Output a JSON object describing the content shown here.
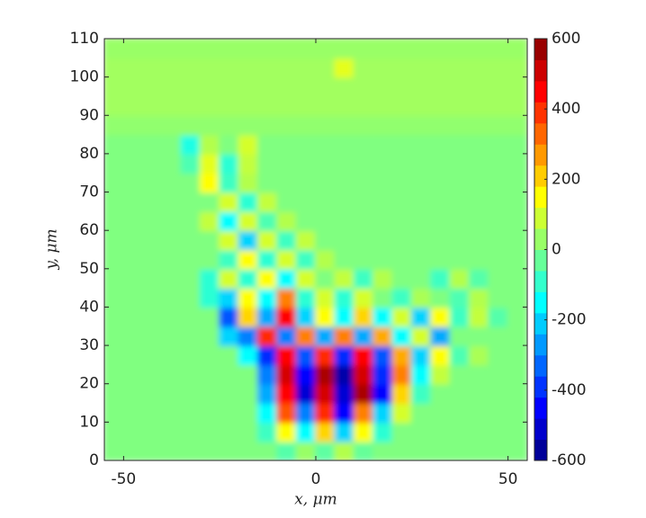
{
  "chart_data": {
    "type": "heatmap",
    "xlabel": "x, μm",
    "ylabel": "y, μm",
    "xlim": [
      -55,
      55
    ],
    "ylim": [
      0,
      110
    ],
    "xticks": [
      -50,
      0,
      50
    ],
    "yticks": [
      0,
      10,
      20,
      30,
      40,
      50,
      60,
      70,
      80,
      90,
      100,
      110
    ],
    "zlim": [
      -600,
      600
    ],
    "zticks": [
      -600,
      -400,
      -200,
      0,
      200,
      400,
      600
    ],
    "colormap": "jet",
    "x": [
      -52.5,
      -47.5,
      -42.5,
      -37.5,
      -32.5,
      -27.5,
      -22.5,
      -17.5,
      -12.5,
      -7.5,
      -2.5,
      2.5,
      7.5,
      12.5,
      17.5,
      22.5,
      27.5,
      32.5,
      37.5,
      42.5,
      47.5,
      52.5
    ],
    "y": [
      2.5,
      7.5,
      12.5,
      17.5,
      22.5,
      27.5,
      32.5,
      37.5,
      42.5,
      47.5,
      52.5,
      57.5,
      62.5,
      67.5,
      72.5,
      77.5,
      82.5,
      87.5,
      92.5,
      97.5,
      102.5,
      107.5
    ],
    "z": [
      [
        0,
        0,
        0,
        0,
        0,
        0,
        0,
        0,
        0,
        -50,
        30,
        -40,
        60,
        -30,
        0,
        0,
        0,
        0,
        0,
        0,
        0,
        0
      ],
      [
        0,
        0,
        0,
        0,
        0,
        0,
        0,
        0,
        -80,
        150,
        -150,
        200,
        -200,
        150,
        -100,
        0,
        0,
        0,
        0,
        0,
        0,
        0
      ],
      [
        0,
        0,
        0,
        0,
        0,
        0,
        0,
        0,
        -150,
        350,
        -300,
        400,
        -450,
        300,
        -200,
        100,
        0,
        0,
        0,
        0,
        0,
        0
      ],
      [
        0,
        0,
        0,
        0,
        0,
        0,
        0,
        0,
        -250,
        450,
        -500,
        500,
        -500,
        550,
        -450,
        200,
        -80,
        0,
        0,
        0,
        0,
        0
      ],
      [
        0,
        0,
        0,
        0,
        0,
        0,
        0,
        0,
        -300,
        500,
        -450,
        550,
        -550,
        500,
        -400,
        300,
        -150,
        80,
        0,
        0,
        0,
        0
      ],
      [
        0,
        0,
        0,
        0,
        0,
        0,
        0,
        -150,
        -400,
        450,
        -350,
        400,
        -400,
        450,
        -350,
        250,
        -200,
        150,
        -60,
        50,
        0,
        0
      ],
      [
        0,
        0,
        0,
        0,
        0,
        0,
        -200,
        -300,
        400,
        -300,
        300,
        -250,
        300,
        -250,
        250,
        -150,
        100,
        -250,
        0,
        0,
        0,
        0
      ],
      [
        0,
        0,
        0,
        0,
        0,
        0,
        -350,
        200,
        -250,
        450,
        -200,
        150,
        -150,
        200,
        -150,
        100,
        -200,
        150,
        -80,
        80,
        -50,
        0
      ],
      [
        0,
        0,
        0,
        0,
        0,
        -100,
        -200,
        150,
        -150,
        300,
        -100,
        100,
        -100,
        100,
        0,
        -80,
        50,
        0,
        -60,
        60,
        0,
        0
      ],
      [
        0,
        0,
        0,
        0,
        0,
        -100,
        100,
        -100,
        150,
        -150,
        100,
        0,
        80,
        -80,
        60,
        0,
        0,
        -80,
        60,
        -50,
        0,
        0
      ],
      [
        0,
        0,
        0,
        0,
        0,
        0,
        -80,
        150,
        -100,
        100,
        -80,
        60,
        0,
        0,
        0,
        0,
        0,
        0,
        0,
        0,
        0,
        0
      ],
      [
        0,
        0,
        0,
        0,
        0,
        0,
        100,
        -200,
        100,
        -80,
        80,
        0,
        0,
        0,
        0,
        0,
        0,
        0,
        0,
        0,
        0,
        0
      ],
      [
        0,
        0,
        0,
        0,
        0,
        80,
        -150,
        100,
        -60,
        60,
        0,
        0,
        0,
        0,
        0,
        0,
        0,
        0,
        0,
        0,
        0,
        0
      ],
      [
        0,
        0,
        0,
        0,
        0,
        0,
        100,
        -100,
        80,
        0,
        0,
        0,
        0,
        0,
        0,
        0,
        0,
        0,
        0,
        0,
        0,
        0
      ],
      [
        0,
        0,
        0,
        0,
        0,
        150,
        -80,
        60,
        0,
        0,
        0,
        0,
        0,
        0,
        0,
        0,
        0,
        0,
        0,
        0,
        0,
        0
      ],
      [
        0,
        0,
        0,
        0,
        -60,
        120,
        -100,
        80,
        0,
        0,
        0,
        0,
        0,
        0,
        0,
        0,
        0,
        0,
        0,
        0,
        0,
        0
      ],
      [
        0,
        0,
        0,
        0,
        -120,
        60,
        0,
        100,
        0,
        0,
        0,
        0,
        0,
        0,
        0,
        0,
        0,
        0,
        0,
        0,
        0,
        0
      ],
      [
        20,
        20,
        20,
        20,
        20,
        20,
        20,
        20,
        20,
        20,
        20,
        20,
        20,
        20,
        20,
        20,
        20,
        20,
        20,
        20,
        20,
        20
      ],
      [
        40,
        40,
        40,
        40,
        40,
        40,
        40,
        40,
        40,
        40,
        40,
        40,
        40,
        40,
        40,
        40,
        40,
        40,
        40,
        40,
        40,
        40
      ],
      [
        40,
        40,
        40,
        40,
        40,
        40,
        40,
        40,
        40,
        40,
        40,
        40,
        40,
        40,
        40,
        40,
        40,
        40,
        40,
        40,
        40,
        40
      ],
      [
        40,
        40,
        40,
        40,
        40,
        40,
        40,
        40,
        40,
        40,
        40,
        40,
        120,
        40,
        40,
        40,
        40,
        40,
        40,
        40,
        40,
        40
      ],
      [
        30,
        30,
        30,
        30,
        30,
        30,
        30,
        30,
        30,
        30,
        30,
        30,
        30,
        30,
        30,
        30,
        30,
        30,
        30,
        30,
        30,
        30
      ]
    ]
  }
}
